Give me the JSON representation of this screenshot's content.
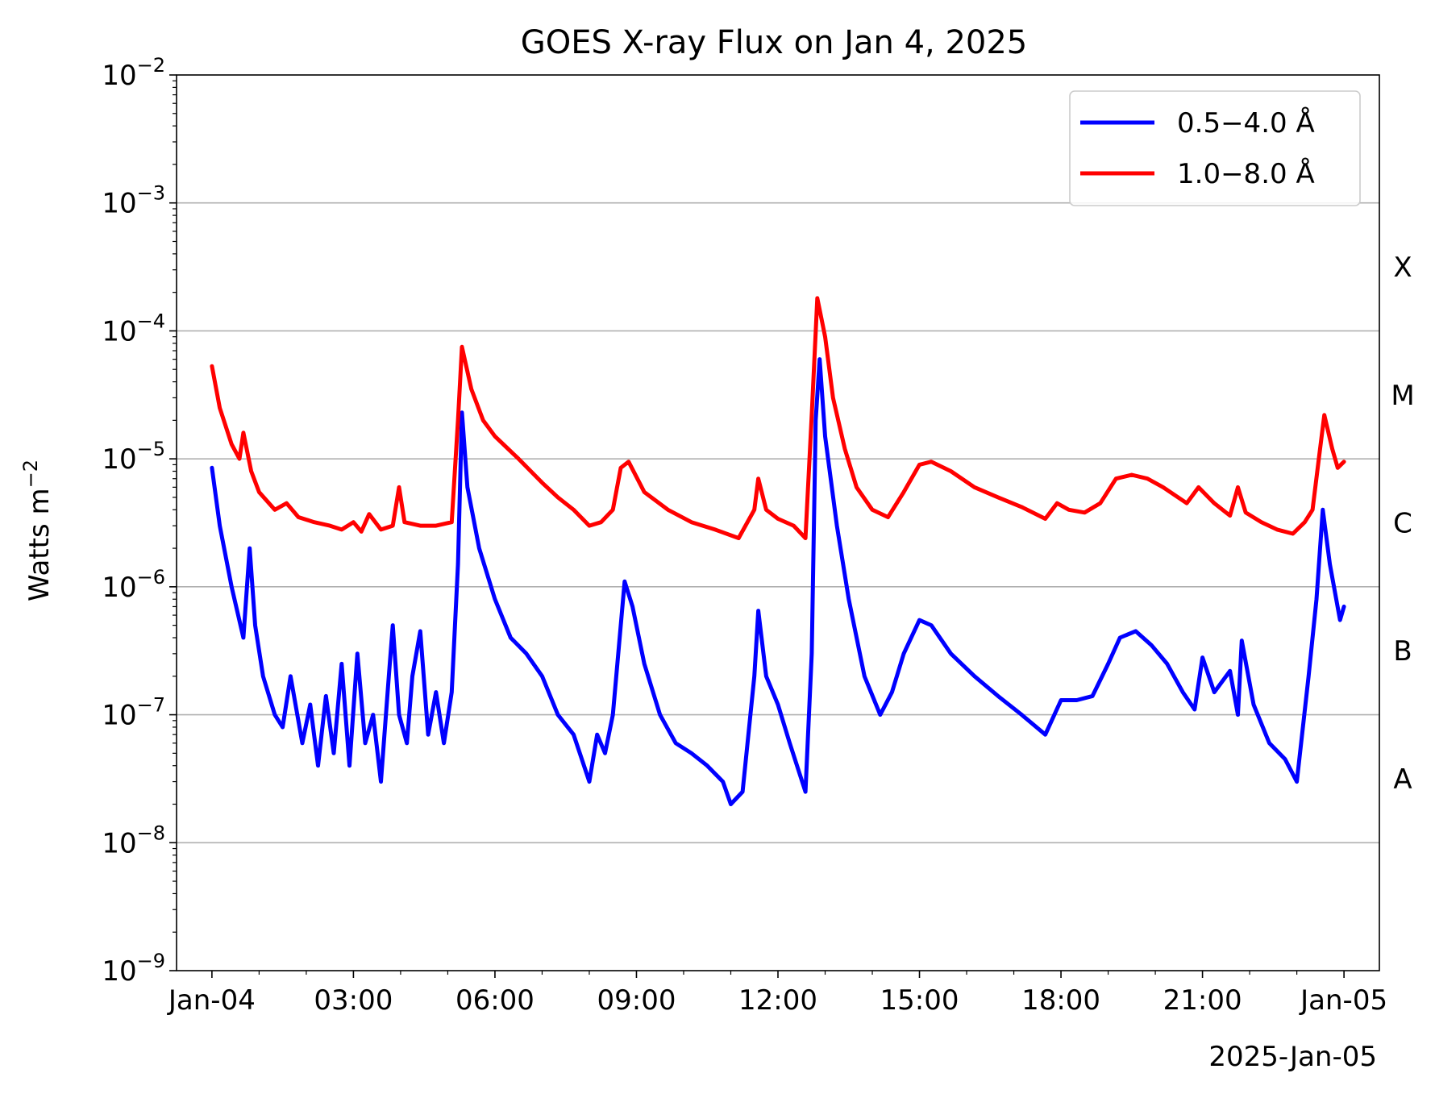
{
  "chart_data": {
    "type": "line",
    "title": "GOES X-ray Flux on Jan 4, 2025",
    "ylabel_base": "Watts m",
    "ylabel_exp": "−2",
    "xlabel_offset": "2025-Jan-05",
    "y_scale": "log",
    "ylim": [
      1e-09,
      0.01
    ],
    "y_ticks": [
      {
        "base": "10",
        "exp": "−9",
        "value": 1e-09
      },
      {
        "base": "10",
        "exp": "−8",
        "value": 1e-08
      },
      {
        "base": "10",
        "exp": "−7",
        "value": 1e-07
      },
      {
        "base": "10",
        "exp": "−6",
        "value": 1e-06
      },
      {
        "base": "10",
        "exp": "−5",
        "value": 1e-05
      },
      {
        "base": "10",
        "exp": "−4",
        "value": 0.0001
      },
      {
        "base": "10",
        "exp": "−3",
        "value": 0.001
      },
      {
        "base": "10",
        "exp": "−2",
        "value": 0.01
      }
    ],
    "xlim": [
      "2025-01-03T23:15",
      "2025-01-05T00:45"
    ],
    "x_ticks": [
      {
        "label": "Jan-04",
        "time": "2025-01-04T00:00"
      },
      {
        "label": "03:00",
        "time": "2025-01-04T03:00"
      },
      {
        "label": "06:00",
        "time": "2025-01-04T06:00"
      },
      {
        "label": "09:00",
        "time": "2025-01-04T09:00"
      },
      {
        "label": "12:00",
        "time": "2025-01-04T12:00"
      },
      {
        "label": "15:00",
        "time": "2025-01-04T15:00"
      },
      {
        "label": "18:00",
        "time": "2025-01-04T18:00"
      },
      {
        "label": "21:00",
        "time": "2025-01-04T21:00"
      },
      {
        "label": "Jan-05",
        "time": "2025-01-05T00:00"
      }
    ],
    "grid": "horizontal at 1e-8 .. 1e-3",
    "legend_position": "top-right",
    "flare_classes": [
      {
        "label": "X",
        "from": 0.0001,
        "to": 0.001
      },
      {
        "label": "M",
        "from": 1e-05,
        "to": 0.0001
      },
      {
        "label": "C",
        "from": 1e-06,
        "to": 1e-05
      },
      {
        "label": "B",
        "from": 1e-07,
        "to": 1e-06
      },
      {
        "label": "A",
        "from": 1e-08,
        "to": 1e-07
      }
    ],
    "series": [
      {
        "name": "0.5−4.0 Å",
        "color": "#0000ff",
        "points": [
          [
            "00:00",
            8.5e-06
          ],
          [
            "00:10",
            3e-06
          ],
          [
            "00:25",
            1e-06
          ],
          [
            "00:40",
            4e-07
          ],
          [
            "00:48",
            2e-06
          ],
          [
            "00:55",
            5e-07
          ],
          [
            "01:05",
            2e-07
          ],
          [
            "01:20",
            1e-07
          ],
          [
            "01:30",
            8e-08
          ],
          [
            "01:40",
            2e-07
          ],
          [
            "01:55",
            6e-08
          ],
          [
            "02:05",
            1.2e-07
          ],
          [
            "02:15",
            4e-08
          ],
          [
            "02:25",
            1.4e-07
          ],
          [
            "02:35",
            5e-08
          ],
          [
            "02:45",
            2.5e-07
          ],
          [
            "02:55",
            4e-08
          ],
          [
            "03:05",
            3e-07
          ],
          [
            "03:15",
            6e-08
          ],
          [
            "03:25",
            1e-07
          ],
          [
            "03:35",
            3e-08
          ],
          [
            "03:45",
            2e-07
          ],
          [
            "03:50",
            5e-07
          ],
          [
            "03:58",
            1e-07
          ],
          [
            "04:08",
            6e-08
          ],
          [
            "04:15",
            2e-07
          ],
          [
            "04:25",
            4.5e-07
          ],
          [
            "04:35",
            7e-08
          ],
          [
            "04:45",
            1.5e-07
          ],
          [
            "04:55",
            6e-08
          ],
          [
            "05:05",
            1.5e-07
          ],
          [
            "05:13",
            1.5e-06
          ],
          [
            "05:18",
            2.3e-05
          ],
          [
            "05:25",
            6e-06
          ],
          [
            "05:40",
            2e-06
          ],
          [
            "06:00",
            8e-07
          ],
          [
            "06:20",
            4e-07
          ],
          [
            "06:40",
            3e-07
          ],
          [
            "07:00",
            2e-07
          ],
          [
            "07:20",
            1e-07
          ],
          [
            "07:40",
            7e-08
          ],
          [
            "08:00",
            3e-08
          ],
          [
            "08:10",
            7e-08
          ],
          [
            "08:20",
            5e-08
          ],
          [
            "08:30",
            1e-07
          ],
          [
            "08:45",
            1.1e-06
          ],
          [
            "08:55",
            7e-07
          ],
          [
            "09:10",
            2.5e-07
          ],
          [
            "09:30",
            1e-07
          ],
          [
            "09:50",
            6e-08
          ],
          [
            "10:10",
            5e-08
          ],
          [
            "10:30",
            4e-08
          ],
          [
            "10:50",
            3e-08
          ],
          [
            "11:00",
            2e-08
          ],
          [
            "11:15",
            2.5e-08
          ],
          [
            "11:30",
            2e-07
          ],
          [
            "11:35",
            6.5e-07
          ],
          [
            "11:45",
            2e-07
          ],
          [
            "12:00",
            1.2e-07
          ],
          [
            "12:15",
            6e-08
          ],
          [
            "12:35",
            2.5e-08
          ],
          [
            "12:43",
            3e-07
          ],
          [
            "12:48",
            2e-05
          ],
          [
            "12:53",
            6e-05
          ],
          [
            "13:00",
            1.5e-05
          ],
          [
            "13:15",
            3e-06
          ],
          [
            "13:30",
            8e-07
          ],
          [
            "13:50",
            2e-07
          ],
          [
            "14:10",
            1e-07
          ],
          [
            "14:25",
            1.5e-07
          ],
          [
            "14:40",
            3e-07
          ],
          [
            "15:00",
            5.5e-07
          ],
          [
            "15:15",
            5e-07
          ],
          [
            "15:40",
            3e-07
          ],
          [
            "16:10",
            2e-07
          ],
          [
            "16:40",
            1.4e-07
          ],
          [
            "17:10",
            1e-07
          ],
          [
            "17:40",
            7e-08
          ],
          [
            "18:00",
            1.3e-07
          ],
          [
            "18:20",
            1.3e-07
          ],
          [
            "18:40",
            1.4e-07
          ],
          [
            "19:00",
            2.5e-07
          ],
          [
            "19:15",
            4e-07
          ],
          [
            "19:35",
            4.5e-07
          ],
          [
            "19:55",
            3.5e-07
          ],
          [
            "20:15",
            2.5e-07
          ],
          [
            "20:35",
            1.5e-07
          ],
          [
            "20:50",
            1.1e-07
          ],
          [
            "21:00",
            2.8e-07
          ],
          [
            "21:15",
            1.5e-07
          ],
          [
            "21:35",
            2.2e-07
          ],
          [
            "21:45",
            1e-07
          ],
          [
            "21:50",
            3.8e-07
          ],
          [
            "22:05",
            1.2e-07
          ],
          [
            "22:25",
            6e-08
          ],
          [
            "22:45",
            4.5e-08
          ],
          [
            "23:00",
            3e-08
          ],
          [
            "23:15",
            2e-07
          ],
          [
            "23:25",
            8e-07
          ],
          [
            "23:33",
            4e-06
          ],
          [
            "23:42",
            1.5e-06
          ],
          [
            "23:55",
            5.5e-07
          ],
          [
            "24:00",
            7e-07
          ]
        ]
      },
      {
        "name": "1.0−8.0 Å",
        "color": "#ff0000",
        "points": [
          [
            "00:00",
            5.3e-05
          ],
          [
            "00:10",
            2.5e-05
          ],
          [
            "00:25",
            1.3e-05
          ],
          [
            "00:35",
            1e-05
          ],
          [
            "00:40",
            1.6e-05
          ],
          [
            "00:50",
            8e-06
          ],
          [
            "01:00",
            5.5e-06
          ],
          [
            "01:20",
            4e-06
          ],
          [
            "01:35",
            4.5e-06
          ],
          [
            "01:50",
            3.5e-06
          ],
          [
            "02:10",
            3.2e-06
          ],
          [
            "02:30",
            3e-06
          ],
          [
            "02:45",
            2.8e-06
          ],
          [
            "03:00",
            3.2e-06
          ],
          [
            "03:10",
            2.7e-06
          ],
          [
            "03:20",
            3.7e-06
          ],
          [
            "03:35",
            2.8e-06
          ],
          [
            "03:50",
            3e-06
          ],
          [
            "03:58",
            6e-06
          ],
          [
            "04:05",
            3.2e-06
          ],
          [
            "04:25",
            3e-06
          ],
          [
            "04:45",
            3e-06
          ],
          [
            "05:05",
            3.2e-06
          ],
          [
            "05:13",
            2e-05
          ],
          [
            "05:18",
            7.5e-05
          ],
          [
            "05:30",
            3.5e-05
          ],
          [
            "05:45",
            2e-05
          ],
          [
            "06:00",
            1.5e-05
          ],
          [
            "06:30",
            1e-05
          ],
          [
            "07:00",
            6.5e-06
          ],
          [
            "07:20",
            5e-06
          ],
          [
            "07:40",
            4e-06
          ],
          [
            "08:00",
            3e-06
          ],
          [
            "08:15",
            3.2e-06
          ],
          [
            "08:30",
            4e-06
          ],
          [
            "08:40",
            8.5e-06
          ],
          [
            "08:50",
            9.5e-06
          ],
          [
            "09:10",
            5.5e-06
          ],
          [
            "09:40",
            4e-06
          ],
          [
            "10:10",
            3.2e-06
          ],
          [
            "10:40",
            2.8e-06
          ],
          [
            "11:10",
            2.4e-06
          ],
          [
            "11:30",
            4e-06
          ],
          [
            "11:35",
            7e-06
          ],
          [
            "11:45",
            4e-06
          ],
          [
            "12:00",
            3.4e-06
          ],
          [
            "12:20",
            3e-06
          ],
          [
            "12:35",
            2.4e-06
          ],
          [
            "12:43",
            2.2e-05
          ],
          [
            "12:50",
            0.00018
          ],
          [
            "13:00",
            9e-05
          ],
          [
            "13:10",
            3e-05
          ],
          [
            "13:25",
            1.2e-05
          ],
          [
            "13:40",
            6e-06
          ],
          [
            "14:00",
            4e-06
          ],
          [
            "14:20",
            3.5e-06
          ],
          [
            "14:40",
            5.5e-06
          ],
          [
            "15:00",
            9e-06
          ],
          [
            "15:15",
            9.5e-06
          ],
          [
            "15:40",
            8e-06
          ],
          [
            "16:10",
            6e-06
          ],
          [
            "16:40",
            5e-06
          ],
          [
            "17:10",
            4.2e-06
          ],
          [
            "17:40",
            3.4e-06
          ],
          [
            "17:55",
            4.5e-06
          ],
          [
            "18:10",
            4e-06
          ],
          [
            "18:30",
            3.8e-06
          ],
          [
            "18:50",
            4.5e-06
          ],
          [
            "19:10",
            7e-06
          ],
          [
            "19:30",
            7.5e-06
          ],
          [
            "19:50",
            7e-06
          ],
          [
            "20:10",
            6e-06
          ],
          [
            "20:40",
            4.5e-06
          ],
          [
            "20:55",
            6e-06
          ],
          [
            "21:15",
            4.5e-06
          ],
          [
            "21:35",
            3.6e-06
          ],
          [
            "21:45",
            6e-06
          ],
          [
            "21:55",
            3.8e-06
          ],
          [
            "22:15",
            3.2e-06
          ],
          [
            "22:35",
            2.8e-06
          ],
          [
            "22:55",
            2.6e-06
          ],
          [
            "23:10",
            3.2e-06
          ],
          [
            "23:20",
            4e-06
          ],
          [
            "23:28",
            1e-05
          ],
          [
            "23:35",
            2.2e-05
          ],
          [
            "23:45",
            1.2e-05
          ],
          [
            "23:52",
            8.5e-06
          ],
          [
            "24:00",
            9.5e-06
          ]
        ]
      }
    ]
  }
}
